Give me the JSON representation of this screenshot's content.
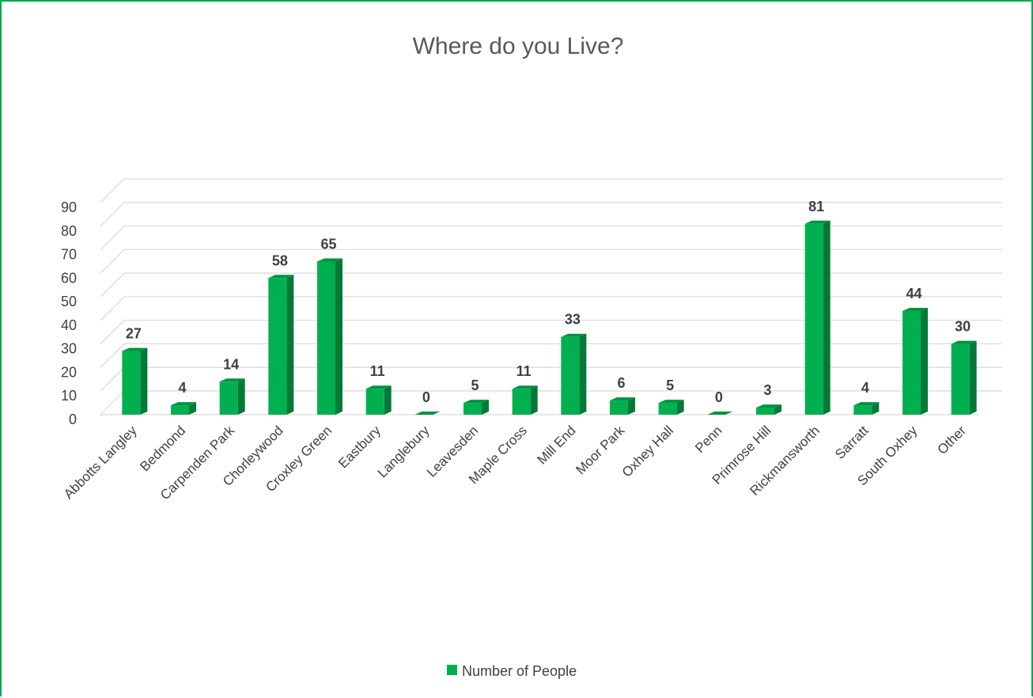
{
  "chart_data": {
    "type": "bar",
    "title": "Where do you Live?",
    "categories": [
      "Abbotts Langley",
      "Bedmond",
      "Carpenden Park",
      "Chorleywood",
      "Croxley Green",
      "Eastbury",
      "Langlebury",
      "Leavesden",
      "Maple Cross",
      "Mill End",
      "Moor Park",
      "Oxhey Hall",
      "Penn",
      "Primrose Hill",
      "Rickmansworth",
      "Sarratt",
      "South Oxhey",
      "Other"
    ],
    "series": [
      {
        "name": "Number of People",
        "values": [
          27,
          4,
          14,
          58,
          65,
          11,
          0,
          5,
          11,
          33,
          6,
          5,
          0,
          3,
          81,
          4,
          44,
          30
        ],
        "color": "#00b050",
        "side_color": "#007a36",
        "top_color": "#00933f"
      }
    ],
    "y_ticks": [
      "0",
      "10",
      "20",
      "30",
      "40",
      "50",
      "60",
      "70",
      "80",
      "90"
    ],
    "ylim": [
      0,
      90
    ],
    "xlabel": "",
    "ylabel": "",
    "grid": true,
    "data_labels": true,
    "legend_position": "bottom",
    "style": "3d-clustered-column",
    "colors": {
      "border": "#00a850",
      "grid": "#d9d9d9",
      "text": "#404040",
      "title": "#595959"
    }
  }
}
